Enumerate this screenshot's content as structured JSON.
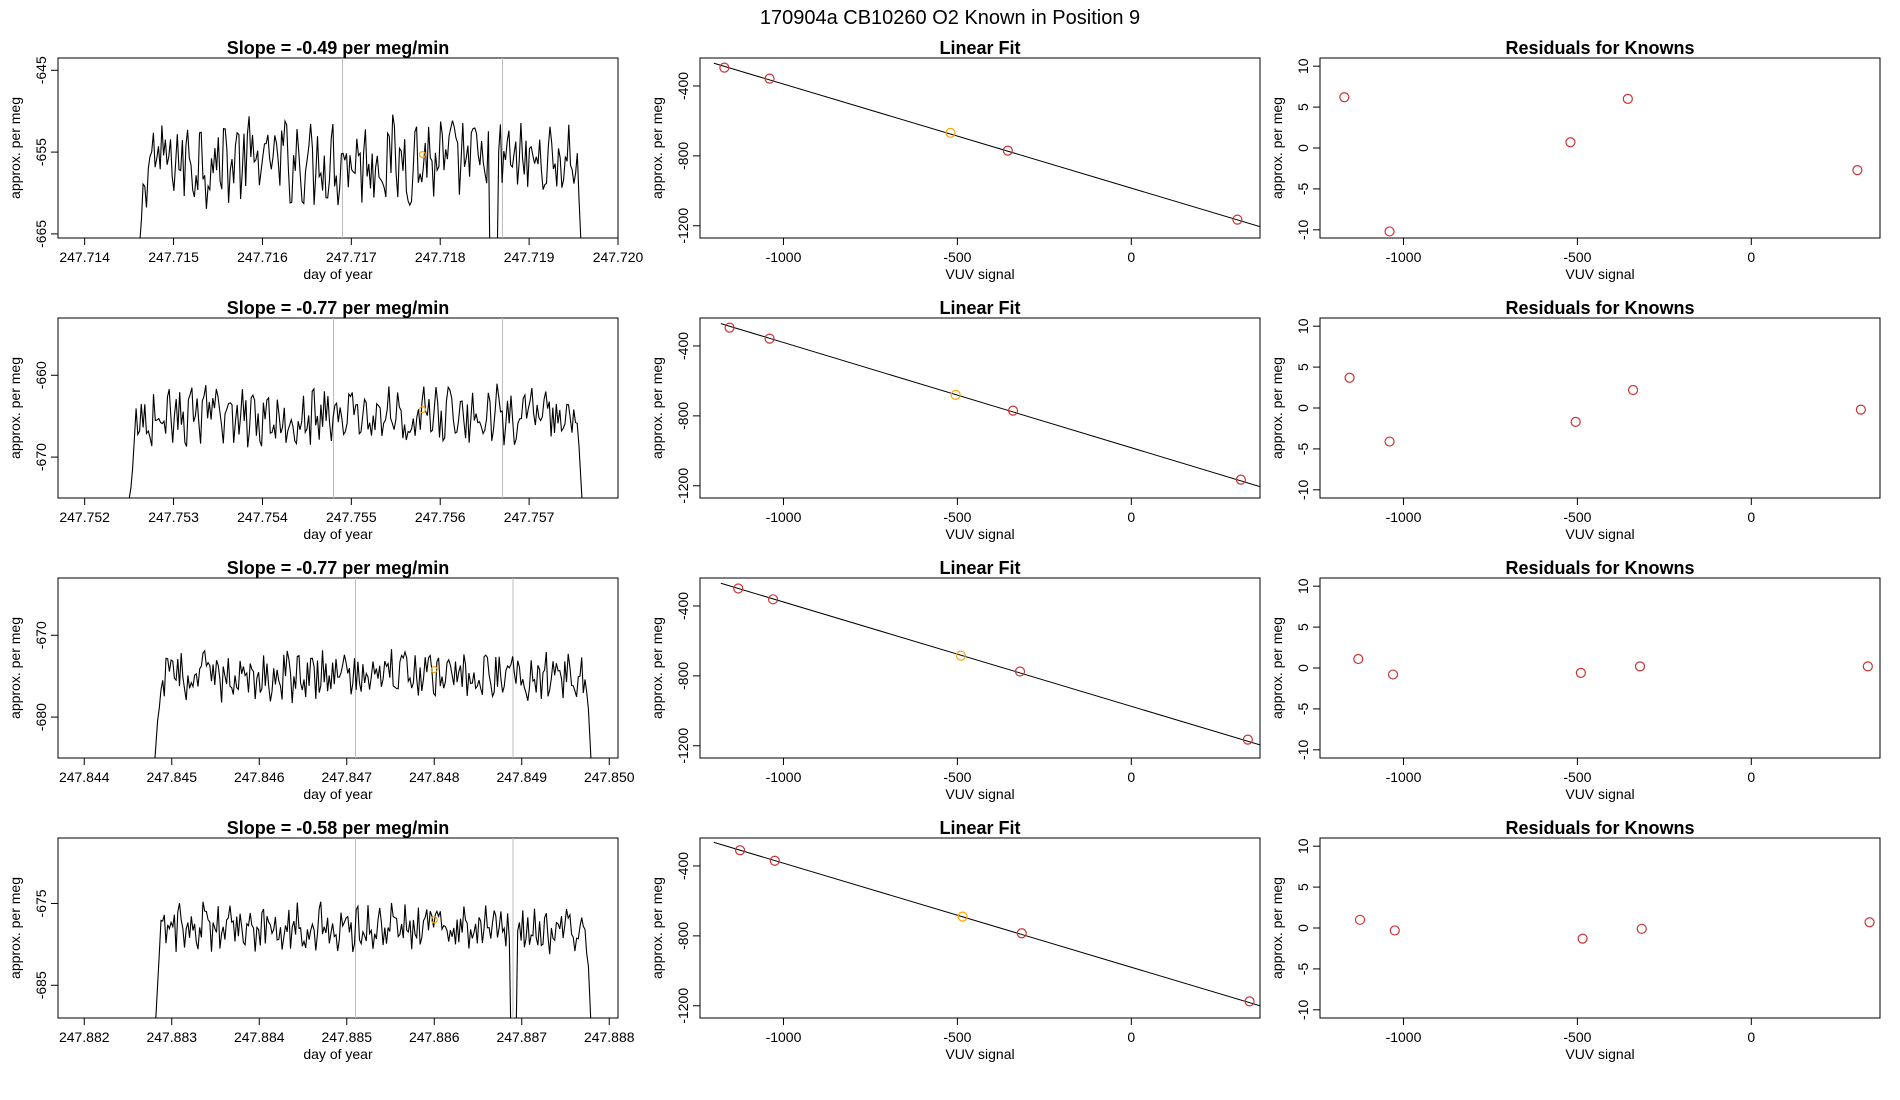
{
  "page_title": "170904a      CB10260    O2 Known in Position  9",
  "colors": {
    "line": "#000000",
    "point_known": "#cd3333",
    "point_highlight": "#ffa500",
    "grid": "#bbbbbb",
    "fit": "#000000"
  },
  "chart_data": [
    {
      "type": "line",
      "row": 0,
      "col": 0,
      "title": "Slope =  -0.49  per meg/min",
      "xlabel": "day of year",
      "ylabel": "approx. per meg",
      "xlim": [
        247.7137,
        247.72
      ],
      "ylim": [
        -665.5,
        -643.5
      ],
      "xticks": [
        247.714,
        247.715,
        247.716,
        247.717,
        247.718,
        247.719,
        247.72
      ],
      "xtick_labels": [
        "247.714",
        "247.715",
        "247.716",
        "247.717",
        "247.718",
        "247.719",
        "247.720"
      ],
      "yticks": [
        -645,
        -655,
        -665
      ],
      "ytick_labels": [
        "-645",
        "-655",
        "-665"
      ],
      "x_start": 247.7146,
      "x_end": 247.7196,
      "n": 260,
      "y_base": -656,
      "amplitude": 4.5,
      "drops": [
        247.7186
      ],
      "edge_low": -670,
      "vlines": [
        247.7169,
        247.7187
      ],
      "highlight_point": {
        "x": 247.7178,
        "y": -655.3
      }
    },
    {
      "type": "scatter",
      "row": 0,
      "col": 1,
      "title": "Linear Fit",
      "xlabel": "VUV signal",
      "ylabel": "approx. per meg",
      "xlim": [
        -1240,
        370
      ],
      "ylim": [
        -1270,
        -240
      ],
      "xticks": [
        -1000,
        -500,
        0
      ],
      "xtick_labels": [
        "-1000",
        "-500",
        "0"
      ],
      "yticks": [
        -400,
        -800,
        -1200
      ],
      "ytick_labels": [
        "-400",
        "-800",
        "-1200"
      ],
      "points": [
        {
          "x": -1170,
          "y": -295
        },
        {
          "x": -1040,
          "y": -358
        },
        {
          "x": -520,
          "y": -668
        },
        {
          "x": -355,
          "y": -770
        },
        {
          "x": 305,
          "y": -1165
        }
      ],
      "highlight_index": 2,
      "fit_line": {
        "x": [
          -1200,
          370
        ],
        "y": [
          -270,
          -1205
        ]
      }
    },
    {
      "type": "scatter",
      "row": 0,
      "col": 2,
      "title": "Residuals for Knowns",
      "xlabel": "VUV signal",
      "ylabel": "approx. per meg",
      "xlim": [
        -1240,
        370
      ],
      "ylim": [
        -11,
        11
      ],
      "xticks": [
        -1000,
        -500,
        0
      ],
      "xtick_labels": [
        "-1000",
        "-500",
        "0"
      ],
      "yticks": [
        10,
        5,
        0,
        -5,
        -10
      ],
      "ytick_labels": [
        "10",
        "5",
        "0",
        "-5",
        "-10"
      ],
      "points": [
        {
          "x": -1170,
          "y": 6.2
        },
        {
          "x": -1040,
          "y": -10.2
        },
        {
          "x": -520,
          "y": 0.7
        },
        {
          "x": -355,
          "y": 6.0
        },
        {
          "x": 305,
          "y": -2.7
        }
      ]
    },
    {
      "type": "line",
      "row": 1,
      "col": 0,
      "title": "Slope =  -0.77  per meg/min",
      "xlabel": "day of year",
      "ylabel": "approx. per meg",
      "xlim": [
        247.7517,
        247.758
      ],
      "ylim": [
        -675,
        -653
      ],
      "xticks": [
        247.752,
        247.753,
        247.754,
        247.755,
        247.756,
        247.757
      ],
      "xtick_labels": [
        "247.752",
        "247.753",
        "247.754",
        "247.755",
        "247.756",
        "247.757"
      ],
      "yticks": [
        -660,
        -670
      ],
      "ytick_labels": [
        "-660",
        "-670"
      ],
      "x_start": 247.7525,
      "x_end": 247.7576,
      "n": 260,
      "y_base": -665,
      "amplitude": 3,
      "drops": [],
      "edge_low": -676,
      "vlines": [
        247.7548,
        247.7567
      ],
      "highlight_point": {
        "x": 247.7558,
        "y": -664.2
      }
    },
    {
      "type": "scatter",
      "row": 1,
      "col": 1,
      "title": "Linear Fit",
      "xlabel": "VUV signal",
      "ylabel": "approx. per meg",
      "xlim": [
        -1240,
        370
      ],
      "ylim": [
        -1270,
        -240
      ],
      "xticks": [
        -1000,
        -500,
        0
      ],
      "xtick_labels": [
        "-1000",
        "-500",
        "0"
      ],
      "yticks": [
        -400,
        -800,
        -1200
      ],
      "ytick_labels": [
        "-400",
        "-800",
        "-1200"
      ],
      "points": [
        {
          "x": -1155,
          "y": -295
        },
        {
          "x": -1040,
          "y": -358
        },
        {
          "x": -505,
          "y": -680
        },
        {
          "x": -340,
          "y": -770
        },
        {
          "x": 315,
          "y": -1165
        }
      ],
      "highlight_index": 2,
      "fit_line": {
        "x": [
          -1180,
          370
        ],
        "y": [
          -272,
          -1205
        ]
      }
    },
    {
      "type": "scatter",
      "row": 1,
      "col": 2,
      "title": "Residuals for Knowns",
      "xlabel": "VUV signal",
      "ylabel": "approx. per meg",
      "xlim": [
        -1240,
        370
      ],
      "ylim": [
        -11,
        11
      ],
      "xticks": [
        -1000,
        -500,
        0
      ],
      "xtick_labels": [
        "-1000",
        "-500",
        "0"
      ],
      "yticks": [
        10,
        5,
        0,
        -5,
        -10
      ],
      "ytick_labels": [
        "10",
        "5",
        "0",
        "-5",
        "-10"
      ],
      "points": [
        {
          "x": -1155,
          "y": 3.7
        },
        {
          "x": -1040,
          "y": -4.1
        },
        {
          "x": -505,
          "y": -1.7
        },
        {
          "x": -340,
          "y": 2.2
        },
        {
          "x": 315,
          "y": -0.2
        }
      ]
    },
    {
      "type": "line",
      "row": 2,
      "col": 0,
      "title": "Slope =  -0.77  per meg/min",
      "xlabel": "day of year",
      "ylabel": "approx. per meg",
      "xlim": [
        247.8437,
        247.8501
      ],
      "ylim": [
        -685,
        -663
      ],
      "xticks": [
        247.844,
        247.845,
        247.846,
        247.847,
        247.848,
        247.849,
        247.85
      ],
      "xtick_labels": [
        "247.844",
        "247.845",
        "247.846",
        "247.847",
        "247.848",
        "247.849",
        "247.850"
      ],
      "yticks": [
        -670,
        -680
      ],
      "ytick_labels": [
        "-670",
        "-680"
      ],
      "x_start": 247.8448,
      "x_end": 247.8498,
      "n": 260,
      "y_base": -675,
      "amplitude": 2.5,
      "drops": [],
      "edge_low": -687,
      "vlines": [
        247.8471,
        247.8489
      ],
      "highlight_point": {
        "x": 247.848,
        "y": -674.2
      }
    },
    {
      "type": "scatter",
      "row": 2,
      "col": 1,
      "title": "Linear Fit",
      "xlabel": "VUV signal",
      "ylabel": "approx. per meg",
      "xlim": [
        -1240,
        370
      ],
      "ylim": [
        -1270,
        -240
      ],
      "xticks": [
        -1000,
        -500,
        0
      ],
      "xtick_labels": [
        "-1000",
        "-500",
        "0"
      ],
      "yticks": [
        -400,
        -800,
        -1200
      ],
      "ytick_labels": [
        "-400",
        "-800",
        "-1200"
      ],
      "points": [
        {
          "x": -1130,
          "y": -300
        },
        {
          "x": -1030,
          "y": -362
        },
        {
          "x": -490,
          "y": -684
        },
        {
          "x": -320,
          "y": -775
        },
        {
          "x": 335,
          "y": -1165
        }
      ],
      "highlight_index": 2,
      "fit_line": {
        "x": [
          -1180,
          370
        ],
        "y": [
          -270,
          -1195
        ]
      }
    },
    {
      "type": "scatter",
      "row": 2,
      "col": 2,
      "title": "Residuals for Knowns",
      "xlabel": "VUV signal",
      "ylabel": "approx. per meg",
      "xlim": [
        -1240,
        370
      ],
      "ylim": [
        -11,
        11
      ],
      "xticks": [
        -1000,
        -500,
        0
      ],
      "xtick_labels": [
        "-1000",
        "-500",
        "0"
      ],
      "yticks": [
        10,
        5,
        0,
        -5,
        -10
      ],
      "ytick_labels": [
        "10",
        "5",
        "0",
        "-5",
        "-10"
      ],
      "points": [
        {
          "x": -1130,
          "y": 1.1
        },
        {
          "x": -1030,
          "y": -0.8
        },
        {
          "x": -490,
          "y": -0.6
        },
        {
          "x": -320,
          "y": 0.2
        },
        {
          "x": 335,
          "y": 0.2
        }
      ]
    },
    {
      "type": "line",
      "row": 3,
      "col": 0,
      "title": "Slope =  -0.58  per meg/min",
      "xlabel": "day of year",
      "ylabel": "approx. per meg",
      "xlim": [
        247.8817,
        247.8881
      ],
      "ylim": [
        -689,
        -667
      ],
      "xticks": [
        247.882,
        247.883,
        247.884,
        247.885,
        247.886,
        247.887,
        247.888
      ],
      "xtick_labels": [
        "247.882",
        "247.883",
        "247.884",
        "247.885",
        "247.886",
        "247.887",
        "247.888"
      ],
      "yticks": [
        -675,
        -685
      ],
      "ytick_labels": [
        "-675",
        "-685"
      ],
      "x_start": 247.8828,
      "x_end": 247.8878,
      "n": 260,
      "y_base": -678,
      "amplitude": 2.5,
      "drops": [
        247.8869
      ],
      "edge_low": -692,
      "vlines": [
        247.8851,
        247.8869
      ],
      "highlight_point": {
        "x": 247.886,
        "y": -677
      }
    },
    {
      "type": "scatter",
      "row": 3,
      "col": 1,
      "title": "Linear Fit",
      "xlabel": "VUV signal",
      "ylabel": "approx. per meg",
      "xlim": [
        -1240,
        370
      ],
      "ylim": [
        -1270,
        -240
      ],
      "xticks": [
        -1000,
        -500,
        0
      ],
      "xtick_labels": [
        "-1000",
        "-500",
        "0"
      ],
      "yticks": [
        -400,
        -800,
        -1200
      ],
      "ytick_labels": [
        "-400",
        "-800",
        "-1200"
      ],
      "points": [
        {
          "x": -1125,
          "y": -310
        },
        {
          "x": -1025,
          "y": -370
        },
        {
          "x": -485,
          "y": -690
        },
        {
          "x": -315,
          "y": -785
        },
        {
          "x": 340,
          "y": -1175
        }
      ],
      "highlight_index": 2,
      "fit_line": {
        "x": [
          -1200,
          370
        ],
        "y": [
          -265,
          -1200
        ]
      }
    },
    {
      "type": "scatter",
      "row": 3,
      "col": 2,
      "title": "Residuals for Knowns",
      "xlabel": "VUV signal",
      "ylabel": "approx. per meg",
      "xlim": [
        -1240,
        370
      ],
      "ylim": [
        -11,
        11
      ],
      "xticks": [
        -1000,
        -500,
        0
      ],
      "xtick_labels": [
        "-1000",
        "-500",
        "0"
      ],
      "yticks": [
        10,
        5,
        0,
        -5,
        -10
      ],
      "ytick_labels": [
        "10",
        "5",
        "0",
        "-5",
        "-10"
      ],
      "points": [
        {
          "x": -1125,
          "y": 1.0
        },
        {
          "x": -1025,
          "y": -0.3
        },
        {
          "x": -485,
          "y": -1.3
        },
        {
          "x": -315,
          "y": -0.1
        },
        {
          "x": 340,
          "y": 0.7
        }
      ]
    }
  ]
}
